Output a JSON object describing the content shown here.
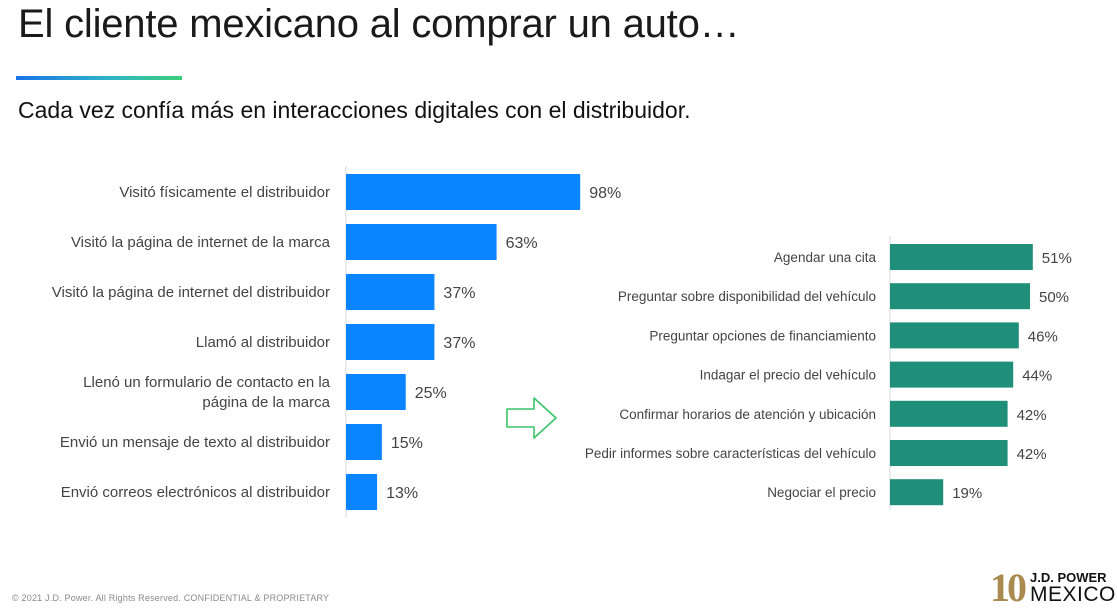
{
  "header": {
    "title": "El cliente mexicano al comprar un auto…",
    "subtitle": "Cada vez confía más en interacciones digitales con el distribuidor."
  },
  "footer": {
    "copyright": "© 2021 J.D. Power. All Rights Reserved. CONFIDENTIAL & PROPRIETARY"
  },
  "logo": {
    "number": "10",
    "brand": "J.D. POWER",
    "country": "MEXICO"
  },
  "colors": {
    "left_bars": "#0a84ff",
    "right_bars": "#1f8f79",
    "arrow": "#3cc36a"
  },
  "chart_data": [
    {
      "type": "bar",
      "orientation": "horizontal",
      "categories": [
        "Visitó físicamente el distribuidor",
        "Visitó la página de internet de la marca",
        "Visitó la página de internet del distribuidor",
        "Llamó al distribuidor",
        "Llenó un formulario de contacto en la página de la marca",
        "Envió un mensaje de texto al distribuidor",
        "Envió correos electrónicos al distribuidor"
      ],
      "values": [
        98,
        63,
        37,
        37,
        25,
        15,
        13
      ],
      "data_labels": [
        "98%",
        "63%",
        "37%",
        "37%",
        "25%",
        "15%",
        "13%"
      ],
      "xlim": [
        0,
        100
      ],
      "grid": false,
      "legend": "none"
    },
    {
      "type": "bar",
      "orientation": "horizontal",
      "categories": [
        "Agendar una cita",
        "Preguntar sobre disponibilidad del vehículo",
        "Preguntar opciones de financiamiento",
        "Indagar el precio del vehículo",
        "Confirmar horarios de atención y ubicación",
        "Pedir informes sobre características del vehículo",
        "Negociar el precio"
      ],
      "values": [
        51,
        50,
        46,
        44,
        42,
        42,
        19
      ],
      "data_labels": [
        "51%",
        "50%",
        "46%",
        "44%",
        "42%",
        "42%",
        "19%"
      ],
      "xlim": [
        0,
        100
      ],
      "grid": false,
      "legend": "none"
    }
  ]
}
